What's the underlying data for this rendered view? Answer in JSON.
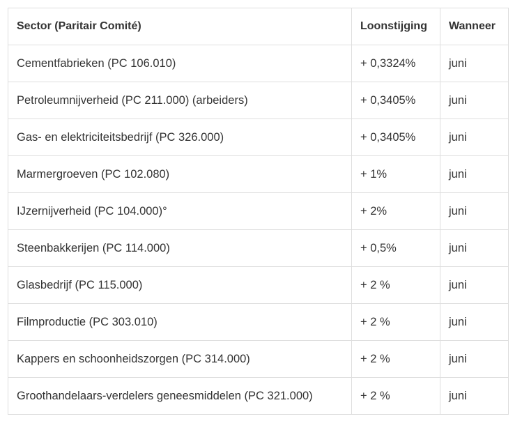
{
  "table": {
    "headers": [
      "Sector (Paritair Comité)",
      "Loonstijging",
      "Wanneer"
    ],
    "rows": [
      [
        "Cementfabrieken (PC 106.010)",
        "+ 0,3324%",
        "juni"
      ],
      [
        "Petroleumnijverheid (PC 211.000) (arbeiders)",
        "+ 0,3405%",
        "juni"
      ],
      [
        "Gas- en elektriciteitsbedrijf (PC 326.000)",
        "+ 0,3405%",
        "juni"
      ],
      [
        "Marmergroeven (PC 102.080)",
        "+ 1%",
        "juni"
      ],
      [
        "IJzernijverheid (PC 104.000)°",
        "+ 2%",
        "juni"
      ],
      [
        "Steenbakkerijen (PC 114.000)",
        "+ 0,5%",
        "juni"
      ],
      [
        "Glasbedrijf (PC 115.000)",
        "+ 2 %",
        "juni"
      ],
      [
        "Filmproductie (PC 303.010)",
        "+ 2 %",
        "juni"
      ],
      [
        "Kappers en schoonheidszorgen (PC 314.000)",
        "+ 2 %",
        "juni"
      ],
      [
        "Groothandelaars-verdelers geneesmiddelen (PC 321.000)",
        "+ 2 %",
        "juni"
      ]
    ]
  }
}
